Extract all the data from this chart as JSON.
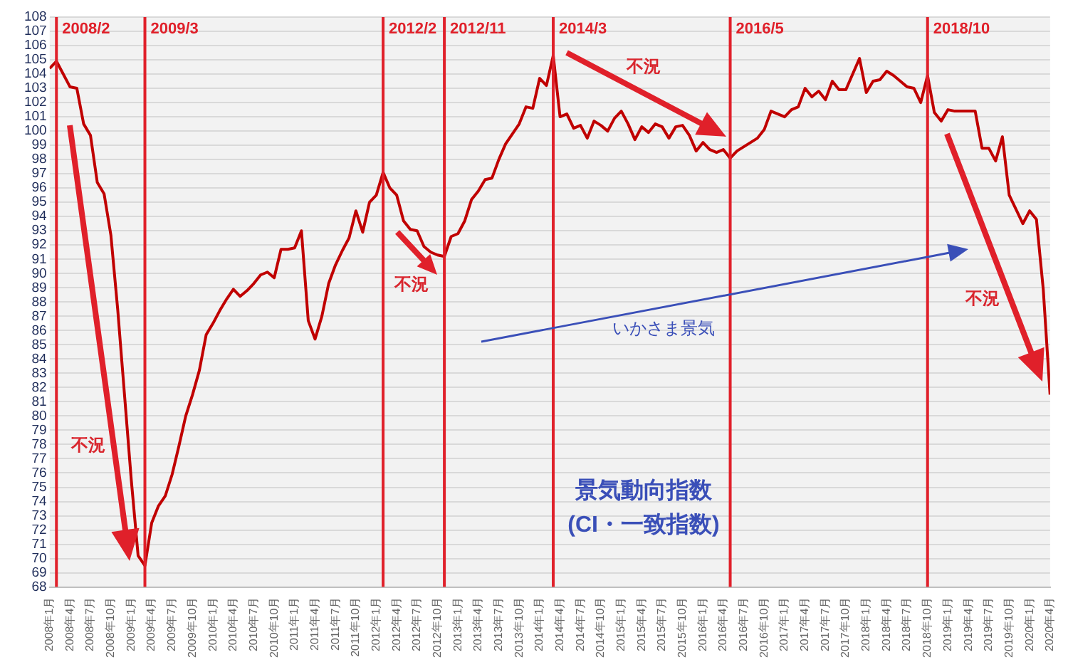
{
  "chart_data": {
    "type": "line",
    "title": "景気動向指数",
    "subtitle": "(CI・一致指数)",
    "x": [
      "2008-01",
      "2008-02",
      "2008-03",
      "2008-04",
      "2008-05",
      "2008-06",
      "2008-07",
      "2008-08",
      "2008-09",
      "2008-10",
      "2008-11",
      "2008-12",
      "2009-01",
      "2009-02",
      "2009-03",
      "2009-04",
      "2009-05",
      "2009-06",
      "2009-07",
      "2009-08",
      "2009-09",
      "2009-10",
      "2009-11",
      "2009-12",
      "2010-01",
      "2010-02",
      "2010-03",
      "2010-04",
      "2010-05",
      "2010-06",
      "2010-07",
      "2010-08",
      "2010-09",
      "2010-10",
      "2010-11",
      "2010-12",
      "2011-01",
      "2011-02",
      "2011-03",
      "2011-04",
      "2011-05",
      "2011-06",
      "2011-07",
      "2011-08",
      "2011-09",
      "2011-10",
      "2011-11",
      "2011-12",
      "2012-01",
      "2012-02",
      "2012-03",
      "2012-04",
      "2012-05",
      "2012-06",
      "2012-07",
      "2012-08",
      "2012-09",
      "2012-10",
      "2012-11",
      "2012-12",
      "2013-01",
      "2013-02",
      "2013-03",
      "2013-04",
      "2013-05",
      "2013-06",
      "2013-07",
      "2013-08",
      "2013-09",
      "2013-10",
      "2013-11",
      "2013-12",
      "2014-01",
      "2014-02",
      "2014-03",
      "2014-04",
      "2014-05",
      "2014-06",
      "2014-07",
      "2014-08",
      "2014-09",
      "2014-10",
      "2014-11",
      "2014-12",
      "2015-01",
      "2015-02",
      "2015-03",
      "2015-04",
      "2015-05",
      "2015-06",
      "2015-07",
      "2015-08",
      "2015-09",
      "2015-10",
      "2015-11",
      "2015-12",
      "2016-01",
      "2016-02",
      "2016-03",
      "2016-04",
      "2016-05",
      "2016-06",
      "2016-07",
      "2016-08",
      "2016-09",
      "2016-10",
      "2016-11",
      "2016-12",
      "2017-01",
      "2017-02",
      "2017-03",
      "2017-04",
      "2017-05",
      "2017-06",
      "2017-07",
      "2017-08",
      "2017-09",
      "2017-10",
      "2017-11",
      "2017-12",
      "2018-01",
      "2018-02",
      "2018-03",
      "2018-04",
      "2018-05",
      "2018-06",
      "2018-07",
      "2018-08",
      "2018-09",
      "2018-10",
      "2018-11",
      "2018-12",
      "2019-01",
      "2019-02",
      "2019-03",
      "2019-04",
      "2019-05",
      "2019-06",
      "2019-07",
      "2019-08",
      "2019-09",
      "2019-10",
      "2019-11",
      "2019-12",
      "2020-01",
      "2020-02",
      "2020-03",
      "2020-04"
    ],
    "series": [
      {
        "color": "#c00000",
        "values": [
          104.4,
          104.9,
          104.0,
          103.1,
          103.0,
          100.5,
          99.7,
          96.4,
          95.6,
          92.7,
          87.5,
          81.5,
          75.5,
          70.2,
          69.5,
          72.5,
          73.7,
          74.4,
          75.9,
          77.9,
          80.0,
          81.5,
          83.2,
          85.7,
          86.5,
          87.4,
          88.2,
          88.9,
          88.4,
          88.8,
          89.3,
          89.9,
          90.1,
          89.7,
          91.7,
          91.7,
          91.8,
          93.0,
          86.7,
          85.4,
          87.0,
          89.3,
          90.6,
          91.6,
          92.5,
          94.4,
          92.9,
          95.0,
          95.5,
          97.1,
          96.0,
          95.5,
          93.7,
          93.1,
          93.0,
          91.9,
          91.5,
          91.3,
          91.2,
          92.6,
          92.8,
          93.7,
          95.2,
          95.8,
          96.6,
          96.7,
          98.0,
          99.1,
          99.8,
          100.5,
          101.7,
          101.6,
          103.7,
          103.2,
          105.3,
          101.0,
          101.2,
          100.2,
          100.4,
          99.5,
          100.7,
          100.4,
          100.0,
          100.9,
          101.4,
          100.5,
          99.4,
          100.3,
          99.9,
          100.5,
          100.3,
          99.5,
          100.3,
          100.4,
          99.7,
          98.6,
          99.2,
          98.7,
          98.5,
          98.7,
          98.1,
          98.6,
          98.9,
          99.2,
          99.5,
          100.1,
          101.4,
          101.2,
          101.0,
          101.5,
          101.7,
          103.0,
          102.4,
          102.8,
          102.2,
          103.5,
          102.9,
          102.9,
          104.0,
          105.1,
          102.7,
          103.5,
          103.6,
          104.2,
          103.9,
          103.5,
          103.1,
          103.0,
          102.0,
          103.9,
          101.3,
          100.7,
          101.5,
          101.4,
          101.4,
          101.4,
          101.4,
          98.8,
          98.8,
          97.9,
          99.6,
          95.5,
          94.5,
          93.5,
          94.4,
          93.8,
          88.9,
          81.5
        ]
      }
    ],
    "xlim": [
      "2008-01",
      "2020-04"
    ],
    "xticks": [
      {
        "value": "2008-01",
        "label": "2008年1月"
      },
      {
        "value": "2008-04",
        "label": "2008年4月"
      },
      {
        "value": "2008-07",
        "label": "2008年7月"
      },
      {
        "value": "2008-10",
        "label": "2008年10月"
      },
      {
        "value": "2009-01",
        "label": "2009年1月"
      },
      {
        "value": "2009-04",
        "label": "2009年4月"
      },
      {
        "value": "2009-07",
        "label": "2009年7月"
      },
      {
        "value": "2009-10",
        "label": "2009年10月"
      },
      {
        "value": "2010-01",
        "label": "2010年1月"
      },
      {
        "value": "2010-04",
        "label": "2010年4月"
      },
      {
        "value": "2010-07",
        "label": "2010年7月"
      },
      {
        "value": "2010-10",
        "label": "2010年10月"
      },
      {
        "value": "2011-01",
        "label": "2011年1月"
      },
      {
        "value": "2011-04",
        "label": "2011年4月"
      },
      {
        "value": "2011-07",
        "label": "2011年7月"
      },
      {
        "value": "2011-10",
        "label": "2011年10月"
      },
      {
        "value": "2012-01",
        "label": "2012年1月"
      },
      {
        "value": "2012-04",
        "label": "2012年4月"
      },
      {
        "value": "2012-07",
        "label": "2012年7月"
      },
      {
        "value": "2012-10",
        "label": "2012年10月"
      },
      {
        "value": "2013-01",
        "label": "2013年1月"
      },
      {
        "value": "2013-04",
        "label": "2013年4月"
      },
      {
        "value": "2013-07",
        "label": "2013年7月"
      },
      {
        "value": "2013-10",
        "label": "2013年10月"
      },
      {
        "value": "2014-01",
        "label": "2014年1月"
      },
      {
        "value": "2014-04",
        "label": "2014年4月"
      },
      {
        "value": "2014-07",
        "label": "2014年7月"
      },
      {
        "value": "2014-10",
        "label": "2014年10月"
      },
      {
        "value": "2015-01",
        "label": "2015年1月"
      },
      {
        "value": "2015-04",
        "label": "2015年4月"
      },
      {
        "value": "2015-07",
        "label": "2015年7月"
      },
      {
        "value": "2015-10",
        "label": "2015年10月"
      },
      {
        "value": "2016-01",
        "label": "2016年1月"
      },
      {
        "value": "2016-04",
        "label": "2016年4月"
      },
      {
        "value": "2016-07",
        "label": "2016年7月"
      },
      {
        "value": "2016-10",
        "label": "2016年10月"
      },
      {
        "value": "2017-01",
        "label": "2017年1月"
      },
      {
        "value": "2017-04",
        "label": "2017年4月"
      },
      {
        "value": "2017-07",
        "label": "2017年7月"
      },
      {
        "value": "2017-10",
        "label": "2017年10月"
      },
      {
        "value": "2018-01",
        "label": "2018年1月"
      },
      {
        "value": "2018-04",
        "label": "2018年4月"
      },
      {
        "value": "2018-07",
        "label": "2018年7月"
      },
      {
        "value": "2018-10",
        "label": "2018年10月"
      },
      {
        "value": "2019-01",
        "label": "2019年1月"
      },
      {
        "value": "2019-04",
        "label": "2019年4月"
      },
      {
        "value": "2019-07",
        "label": "2019年7月"
      },
      {
        "value": "2019-10",
        "label": "2019年10月"
      },
      {
        "value": "2020-01",
        "label": "2020年1月"
      },
      {
        "value": "2020-04",
        "label": "2020年4月"
      }
    ],
    "ylim": [
      68,
      108
    ],
    "yticks": [
      68,
      69,
      70,
      71,
      72,
      73,
      74,
      75,
      76,
      77,
      78,
      79,
      80,
      81,
      82,
      83,
      84,
      85,
      86,
      87,
      88,
      89,
      90,
      91,
      92,
      93,
      94,
      95,
      96,
      97,
      98,
      99,
      100,
      101,
      102,
      103,
      104,
      105,
      106,
      107,
      108
    ],
    "ref_lines": [
      {
        "axis": "x",
        "value": "2008-02",
        "label": "2008/2",
        "color": "#e0202a"
      },
      {
        "axis": "x",
        "value": "2009-03",
        "label": "2009/3",
        "color": "#e0202a"
      },
      {
        "axis": "x",
        "value": "2012-02",
        "label": "2012/2",
        "color": "#e0202a"
      },
      {
        "axis": "x",
        "value": "2012-11",
        "label": "2012/11",
        "color": "#e0202a"
      },
      {
        "axis": "x",
        "value": "2014-03",
        "label": "2014/3",
        "color": "#e0202a"
      },
      {
        "axis": "x",
        "value": "2016-05",
        "label": "2016/5",
        "color": "#e0202a"
      },
      {
        "axis": "x",
        "value": "2018-10",
        "label": "2018/10",
        "color": "#e0202a"
      }
    ],
    "annotations": [
      "不況",
      "不況",
      "不況",
      "不況",
      "いかさま景気"
    ],
    "grid": "y",
    "legend": false,
    "marker": "none",
    "line_style": "solid"
  }
}
